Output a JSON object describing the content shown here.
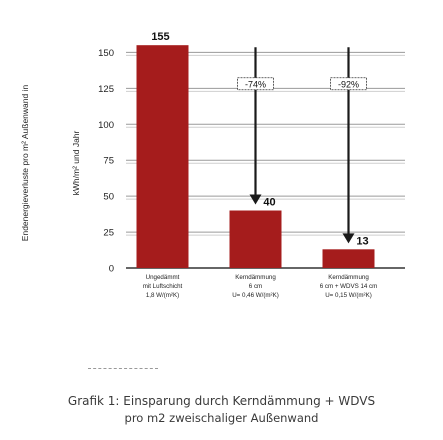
{
  "chart_data": {
    "type": "bar",
    "ylabel": "Endenergieverluste pro m² Außenwand in",
    "ylabel_unit": "kWh/m² und Jahr",
    "ylim": [
      0,
      160
    ],
    "yticks": [
      0,
      25,
      50,
      75,
      100,
      125,
      150
    ],
    "grid": true,
    "bar_color": "#a51c1c",
    "categories": [
      [
        "Ungedämmt",
        "mit Luftschicht",
        "1,8 W/(m²K)"
      ],
      [
        "Kerndämmung",
        "6 cm",
        "U= 0,46 W/(m²K)"
      ],
      [
        "Kerndämmung",
        "6 cm + WDVS 14 cm",
        "U= 0,15 W/(m²K)"
      ]
    ],
    "values": [
      155,
      40,
      13
    ],
    "data_labels": [
      "155",
      "40",
      "13"
    ],
    "annotations": [
      {
        "text": "-74%",
        "from_value": 155,
        "to_value": 40,
        "bar_index": 1
      },
      {
        "text": "-92%",
        "from_value": 155,
        "to_value": 13,
        "bar_index": 2
      }
    ]
  },
  "caption": {
    "line1": "Grafik 1: Einsparung durch Kerndämmung + WDVS",
    "line2": "pro m2 zweischaliger Außenwand"
  }
}
